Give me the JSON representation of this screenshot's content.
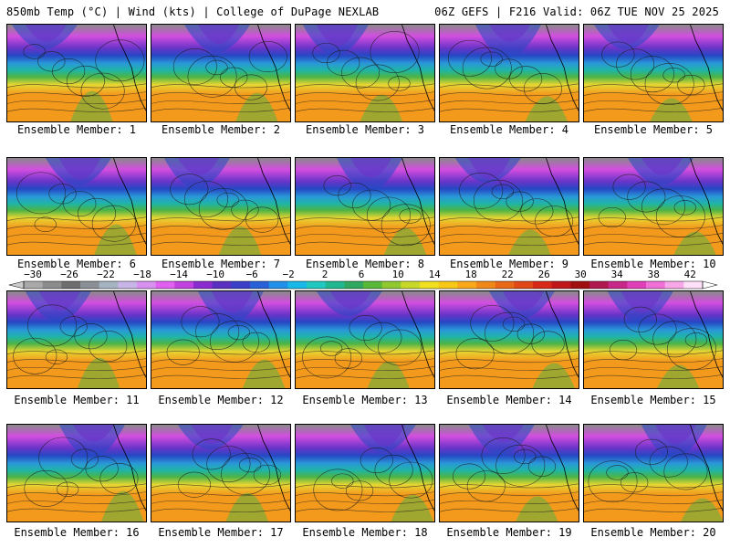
{
  "header": {
    "left": "850mb Temp (°C) | Wind (kts) | College of DuPage NEXLAB",
    "right": "06Z GEFS | F216 Valid: 06Z TUE NOV 25 2025"
  },
  "label_prefix": "Ensemble Member:",
  "members": [
    {
      "number": "1",
      "label": "Ensemble Member: 1"
    },
    {
      "number": "2",
      "label": "Ensemble Member: 2"
    },
    {
      "number": "3",
      "label": "Ensemble Member: 3"
    },
    {
      "number": "4",
      "label": "Ensemble Member: 4"
    },
    {
      "number": "5",
      "label": "Ensemble Member: 5"
    },
    {
      "number": "6",
      "label": "Ensemble Member: 6"
    },
    {
      "number": "7",
      "label": "Ensemble Member: 7"
    },
    {
      "number": "8",
      "label": "Ensemble Member: 8"
    },
    {
      "number": "9",
      "label": "Ensemble Member: 9"
    },
    {
      "number": "10",
      "label": "Ensemble Member: 10"
    },
    {
      "number": "11",
      "label": "Ensemble Member: 11"
    },
    {
      "number": "12",
      "label": "Ensemble Member: 12"
    },
    {
      "number": "13",
      "label": "Ensemble Member: 13"
    },
    {
      "number": "14",
      "label": "Ensemble Member: 14"
    },
    {
      "number": "15",
      "label": "Ensemble Member: 15"
    },
    {
      "number": "16",
      "label": "Ensemble Member: 16"
    },
    {
      "number": "17",
      "label": "Ensemble Member: 17"
    },
    {
      "number": "18",
      "label": "Ensemble Member: 18"
    },
    {
      "number": "19",
      "label": "Ensemble Member: 19"
    },
    {
      "number": "20",
      "label": "Ensemble Member: 20"
    }
  ],
  "colorbar": {
    "ticks": [
      "−30",
      "−26",
      "−22",
      "−18",
      "−14",
      "−10",
      "−6",
      "−2",
      "2",
      "6",
      "10",
      "14",
      "18",
      "22",
      "26",
      "30",
      "34",
      "38",
      "42"
    ],
    "colors": [
      "#a9a9a9",
      "#8c8c8c",
      "#6e6e6e",
      "#8a9096",
      "#a6b3c0",
      "#c8b4e6",
      "#d890f0",
      "#e060f0",
      "#c040e0",
      "#8a2cd0",
      "#5a30c0",
      "#3a40c8",
      "#2860d8",
      "#2090e8",
      "#18b8e8",
      "#20c8c0",
      "#20b890",
      "#30a860",
      "#58b838",
      "#90c830",
      "#c8d828",
      "#f0e020",
      "#f8c818",
      "#f8a818",
      "#f08818",
      "#e86818",
      "#e04818",
      "#d82818",
      "#c01818",
      "#a01010",
      "#b01850",
      "#c82888",
      "#e040b8",
      "#f070d8",
      "#f8a8e8",
      "#ffe0f8"
    ]
  },
  "palette": {
    "warm": "#f39a1d",
    "yellow": "#e7d633",
    "green": "#4cb446",
    "teal": "#1fb4a8",
    "cyan": "#2a98d8",
    "blue": "#2548c4",
    "violet": "#6a34c8",
    "magenta": "#d24ee0",
    "gray": "#8a8a8a"
  }
}
